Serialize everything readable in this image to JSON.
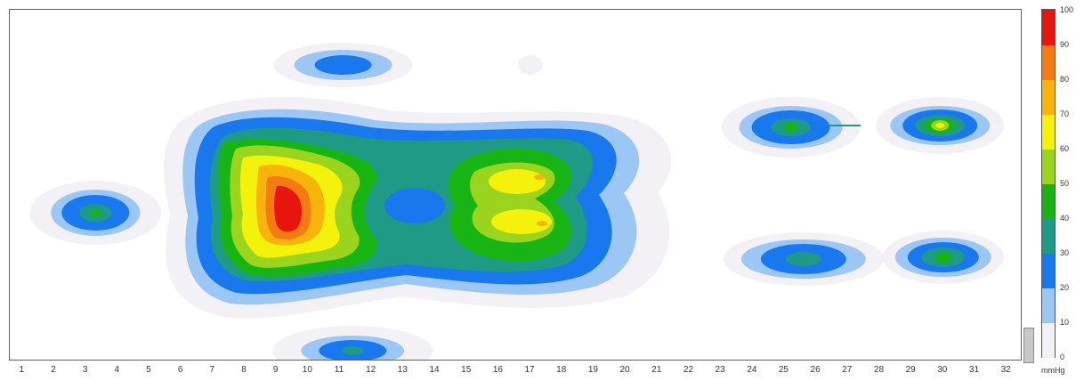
{
  "chart_data": {
    "type": "heatmap",
    "title": "",
    "xlabel": "",
    "ylabel": "",
    "x_ticks": [
      "1",
      "2",
      "3",
      "4",
      "5",
      "6",
      "7",
      "8",
      "9",
      "10",
      "11",
      "12",
      "13",
      "14",
      "15",
      "16",
      "17",
      "18",
      "19",
      "20",
      "21",
      "22",
      "23",
      "24",
      "25",
      "26",
      "27",
      "28",
      "29",
      "30",
      "31",
      "32"
    ],
    "xlim": [
      0.6,
      32.5
    ],
    "colorbar": {
      "unit": "mmHg",
      "range": [
        0,
        100
      ],
      "ticks": [
        "0",
        "10",
        "20",
        "30",
        "40",
        "50",
        "60",
        "70",
        "80",
        "90",
        "100"
      ],
      "levels": [
        0,
        10,
        20,
        30,
        40,
        50,
        60,
        70,
        80,
        90,
        100
      ],
      "colors": [
        "#f3f0f6",
        "#9cc7f5",
        "#1a78ee",
        "#1f9a86",
        "#17b414",
        "#9ad41c",
        "#f4f20a",
        "#f9b40b",
        "#f47b12",
        "#e8150f"
      ]
    },
    "pressure_regions": [
      {
        "name": "upper-top-center",
        "x": [
          10.2,
          12.0
        ],
        "peak": 22
      },
      {
        "name": "small-top-spot",
        "x": [
          16.6,
          17.4
        ],
        "peak": 5
      },
      {
        "name": "left-small",
        "x": [
          2.3,
          4.4
        ],
        "peak": 42
      },
      {
        "name": "main-body",
        "x": [
          5.8,
          19.5
        ],
        "peak": 98
      },
      {
        "name": "bottom-center",
        "x": [
          10.0,
          12.8
        ],
        "peak": 38
      },
      {
        "name": "right-upper-1",
        "x": [
          24.0,
          26.5
        ],
        "peak": 38
      },
      {
        "name": "right-upper-2",
        "x": [
          28.6,
          31.2
        ],
        "peak": 75
      },
      {
        "name": "right-lower-1",
        "x": [
          24.2,
          27.5
        ],
        "peak": 32
      },
      {
        "name": "right-lower-2",
        "x": [
          28.8,
          31.3
        ],
        "peak": 45
      }
    ]
  }
}
